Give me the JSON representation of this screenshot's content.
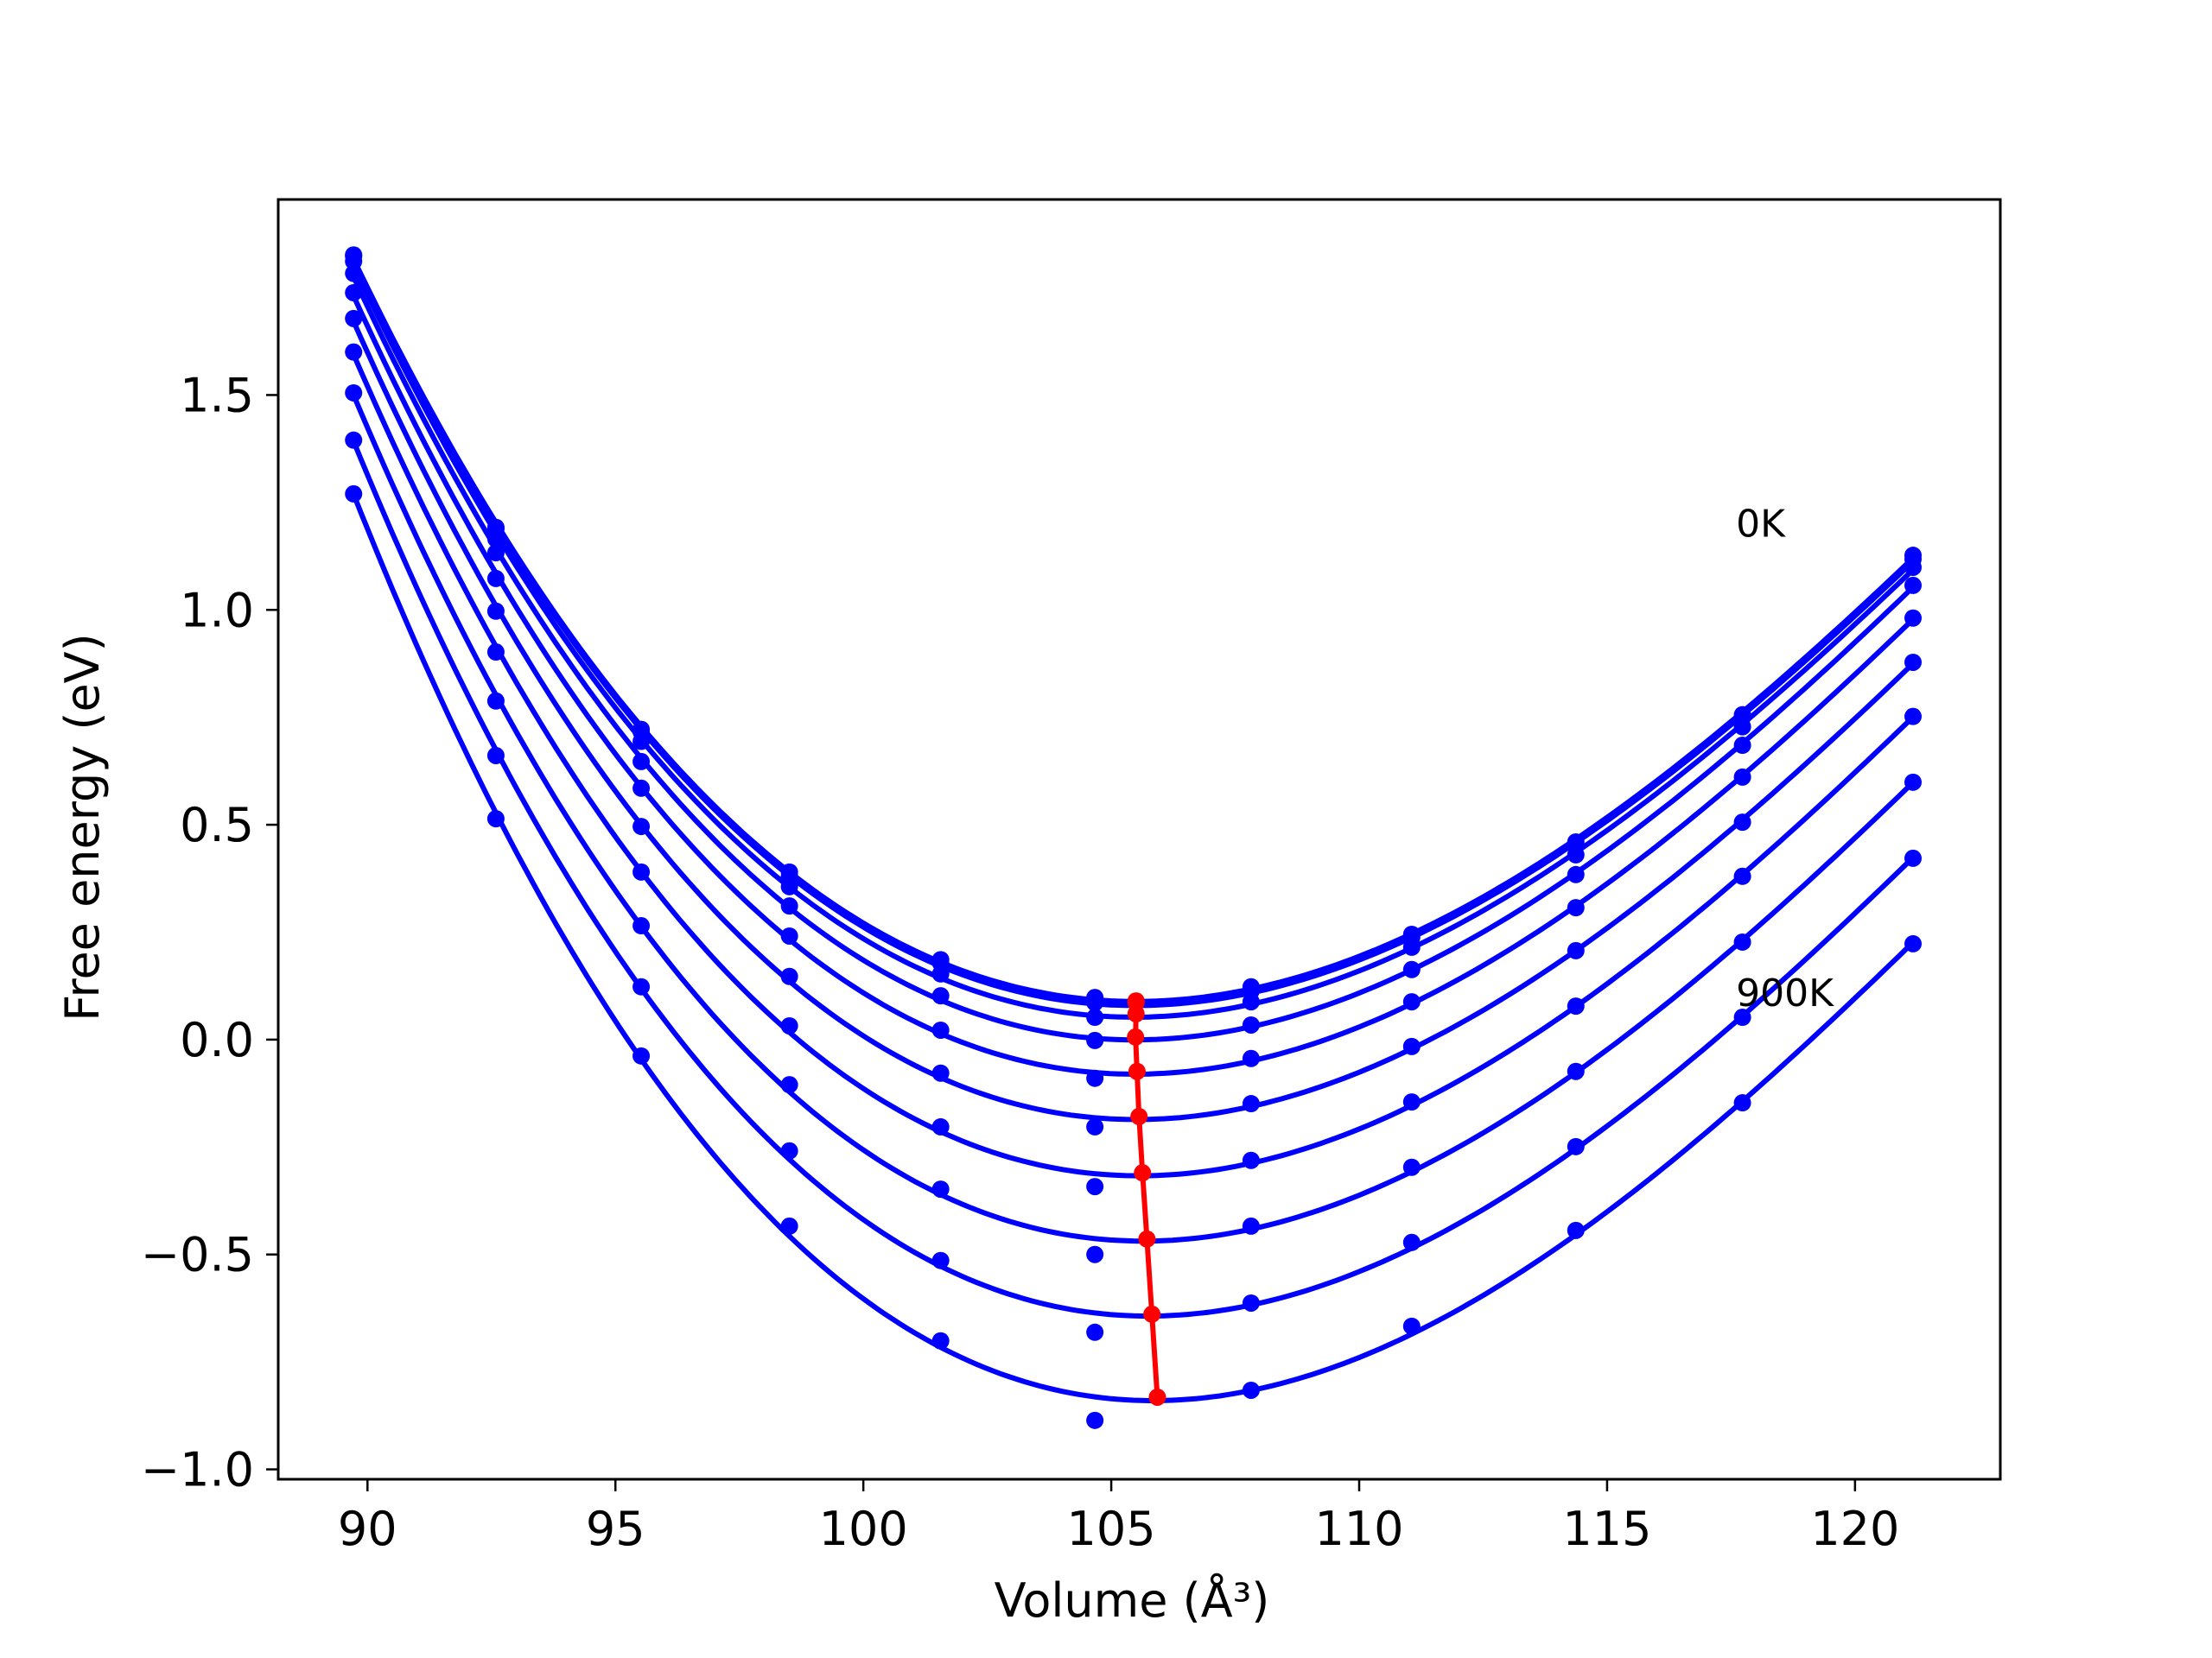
{
  "chart_data": {
    "type": "line",
    "title": "",
    "xlabel": "Volume (Å³)",
    "ylabel": "Free energy (eV)",
    "xlim": [
      88.2,
      122.93
    ],
    "ylim": [
      -1.18,
      1.955
    ],
    "xticks": [
      90,
      95,
      100,
      105,
      110,
      115,
      120
    ],
    "yticks": [
      -1.0,
      -0.5,
      0.0,
      0.5,
      1.0,
      1.5
    ],
    "ytick_labels": [
      "−1.0",
      "−0.5",
      "0.0",
      "0.5",
      "1.0",
      "1.5"
    ],
    "grid": false,
    "annotations": [
      "0K",
      "900K"
    ],
    "colors": {
      "series": "#0000ff",
      "minimum": "#ff0000"
    },
    "x": [
      89.72,
      92.59,
      95.52,
      98.51,
      101.56,
      104.67,
      107.82,
      111.06,
      114.37,
      117.73,
      121.17
    ],
    "series": [
      {
        "values": [
          1.826,
          1.192,
          0.722,
          0.39,
          0.186,
          0.098,
          0.123,
          0.245,
          0.46,
          0.756,
          1.127
        ]
      },
      {
        "values": [
          1.823,
          1.188,
          0.716,
          0.38,
          0.178,
          0.086,
          0.113,
          0.238,
          0.452,
          0.75,
          1.118
        ]
      },
      {
        "values": [
          1.811,
          1.165,
          0.694,
          0.356,
          0.153,
          0.052,
          0.088,
          0.215,
          0.43,
          0.728,
          1.099
        ]
      },
      {
        "values": [
          1.783,
          1.133,
          0.647,
          0.311,
          0.102,
          -0.002,
          0.034,
          0.163,
          0.384,
          0.685,
          1.057
        ]
      },
      {
        "values": [
          1.738,
          1.073,
          0.585,
          0.241,
          0.022,
          -0.09,
          -0.044,
          0.088,
          0.307,
          0.611,
          0.981
        ]
      },
      {
        "values": [
          1.678,
          0.997,
          0.496,
          0.147,
          -0.078,
          -0.203,
          -0.149,
          -0.016,
          0.207,
          0.506,
          0.878
        ]
      },
      {
        "values": [
          1.6,
          0.902,
          0.39,
          0.032,
          -0.203,
          -0.342,
          -0.281,
          -0.145,
          0.078,
          0.38,
          0.752
        ]
      },
      {
        "values": [
          1.505,
          0.788,
          0.265,
          -0.105,
          -0.348,
          -0.5,
          -0.434,
          -0.297,
          -0.074,
          0.227,
          0.599
        ]
      },
      {
        "values": [
          1.395,
          0.661,
          0.123,
          -0.259,
          -0.514,
          -0.681,
          -0.613,
          -0.472,
          -0.249,
          0.052,
          0.422
        ]
      },
      {
        "values": [
          1.27,
          0.514,
          -0.038,
          -0.434,
          -0.701,
          -0.886,
          -0.816,
          -0.667,
          -0.444,
          -0.147,
          0.223
        ]
      }
    ],
    "minimum_curve": {
      "x": [
        105.5,
        105.5,
        105.5,
        105.49,
        105.52,
        105.56,
        105.63,
        105.72,
        105.82,
        105.93
      ],
      "y": [
        0.09,
        0.086,
        0.06,
        0.006,
        -0.074,
        -0.179,
        -0.31,
        -0.464,
        -0.639,
        -0.832
      ]
    }
  }
}
